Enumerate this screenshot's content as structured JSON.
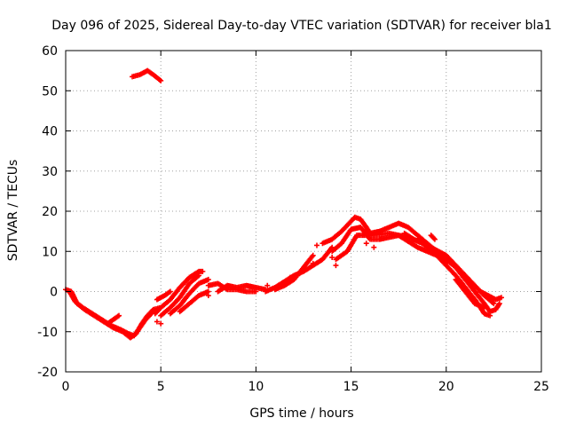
{
  "chart_data": {
    "type": "scatter",
    "title": "Day 096 of 2025, Sidereal Day-to-day VTEC variation (SDTVAR) for receiver bla1",
    "xlabel": "GPS time / hours",
    "ylabel": "SDTVAR / TECUs",
    "xlim": [
      0,
      25
    ],
    "ylim": [
      -20,
      60
    ],
    "xticks": [
      0,
      5,
      10,
      15,
      20,
      25
    ],
    "yticks": [
      -20,
      -10,
      0,
      10,
      20,
      30,
      40,
      50,
      60
    ],
    "grid": true,
    "marker": "plus",
    "series": [
      {
        "name": "SDTVAR",
        "color": "#ff0000",
        "tracks": [
          [
            [
              0,
              0.5
            ],
            [
              0.3,
              0
            ],
            [
              0.6,
              -3
            ],
            [
              1.0,
              -4.5
            ],
            [
              1.5,
              -6
            ],
            [
              2.0,
              -7.5
            ],
            [
              2.5,
              -9
            ],
            [
              3.0,
              -10
            ],
            [
              3.4,
              -11.5
            ],
            [
              3.7,
              -10.5
            ],
            [
              4.0,
              -8
            ],
            [
              4.3,
              -6
            ],
            [
              4.6,
              -4.5
            ],
            [
              5.0,
              -4
            ]
          ],
          [
            [
              0.2,
              0
            ],
            [
              0.5,
              -2.5
            ],
            [
              0.9,
              -4
            ],
            [
              1.4,
              -5.5
            ],
            [
              1.9,
              -7
            ],
            [
              2.4,
              -8.5
            ],
            [
              2.9,
              -9.5
            ],
            [
              3.3,
              -10.5
            ],
            [
              3.6,
              -11
            ],
            [
              3.9,
              -9
            ],
            [
              4.2,
              -7
            ],
            [
              4.6,
              -5
            ]
          ],
          [
            [
              2.2,
              -8
            ],
            [
              2.5,
              -7
            ],
            [
              2.8,
              -6
            ]
          ],
          [
            [
              3.5,
              53.5
            ],
            [
              3.9,
              54
            ],
            [
              4.3,
              55
            ],
            [
              4.6,
              54
            ],
            [
              5.0,
              52.5
            ]
          ],
          [
            [
              4.7,
              -5.5
            ],
            [
              5.0,
              -4
            ],
            [
              5.5,
              -2
            ],
            [
              6.0,
              1
            ],
            [
              6.5,
              3.5
            ],
            [
              7.0,
              5
            ],
            [
              7.2,
              5
            ]
          ],
          [
            [
              5.0,
              -6
            ],
            [
              5.5,
              -4
            ],
            [
              6.0,
              -1.5
            ],
            [
              6.5,
              2
            ],
            [
              7.0,
              4
            ]
          ],
          [
            [
              5.5,
              -5.5
            ],
            [
              6.0,
              -3.5
            ],
            [
              6.5,
              -0.5
            ],
            [
              7.0,
              2
            ],
            [
              7.5,
              3
            ]
          ],
          [
            [
              6.0,
              -5
            ],
            [
              6.5,
              -3
            ],
            [
              7.0,
              -1
            ],
            [
              7.5,
              0
            ]
          ],
          [
            [
              4.8,
              -2
            ],
            [
              5.2,
              -1
            ],
            [
              5.5,
              0
            ]
          ],
          [
            [
              8.0,
              0
            ],
            [
              8.5,
              1.5
            ],
            [
              9.0,
              1
            ],
            [
              9.5,
              1.5
            ],
            [
              10.0,
              1
            ],
            [
              10.5,
              0.5
            ]
          ],
          [
            [
              7.5,
              1.5
            ],
            [
              8.0,
              2
            ],
            [
              8.5,
              0.5
            ],
            [
              9.0,
              0.5
            ],
            [
              9.5,
              0
            ],
            [
              10.0,
              0
            ]
          ],
          [
            [
              10.5,
              0
            ],
            [
              11.0,
              1
            ],
            [
              11.5,
              2.5
            ],
            [
              12.0,
              4
            ],
            [
              12.5,
              5
            ],
            [
              13.0,
              6.5
            ],
            [
              13.5,
              8
            ],
            [
              14.0,
              11
            ]
          ],
          [
            [
              11.0,
              0.5
            ],
            [
              11.5,
              1.5
            ],
            [
              12.0,
              3
            ],
            [
              12.5,
              6
            ],
            [
              13.0,
              9
            ]
          ],
          [
            [
              13.5,
              12
            ],
            [
              14.0,
              13
            ],
            [
              14.5,
              15
            ],
            [
              14.9,
              17
            ],
            [
              15.2,
              18.5
            ],
            [
              15.5,
              18
            ],
            [
              15.8,
              16
            ],
            [
              16.0,
              14.5
            ],
            [
              16.5,
              15
            ],
            [
              17.0,
              16
            ],
            [
              17.5,
              17
            ],
            [
              18.0,
              16
            ],
            [
              18.5,
              14
            ],
            [
              19.0,
              12
            ],
            [
              19.5,
              10
            ],
            [
              20.0,
              8
            ],
            [
              20.5,
              6
            ],
            [
              21.0,
              3
            ],
            [
              21.5,
              0
            ],
            [
              22.0,
              -3
            ],
            [
              22.3,
              -5
            ],
            [
              22.6,
              -4.5
            ],
            [
              22.8,
              -3
            ]
          ],
          [
            [
              14.0,
              10
            ],
            [
              14.5,
              12
            ],
            [
              15.0,
              15.5
            ],
            [
              15.5,
              16
            ],
            [
              16.0,
              13
            ],
            [
              16.5,
              13
            ],
            [
              17.0,
              13.5
            ],
            [
              17.5,
              14
            ],
            [
              18.0,
              12.5
            ],
            [
              18.5,
              11
            ],
            [
              19.0,
              10
            ],
            [
              19.5,
              9
            ],
            [
              20.0,
              6.5
            ],
            [
              20.5,
              4
            ],
            [
              21.0,
              1
            ],
            [
              21.5,
              -2
            ],
            [
              21.8,
              -4
            ],
            [
              22.0,
              -5.5
            ],
            [
              22.3,
              -6
            ]
          ],
          [
            [
              14.2,
              8
            ],
            [
              14.8,
              10
            ],
            [
              15.3,
              14
            ],
            [
              16.0,
              14
            ],
            [
              17.0,
              14.5
            ],
            [
              18.0,
              13.5
            ],
            [
              19.0,
              11.5
            ],
            [
              20.0,
              9
            ],
            [
              21.0,
              4
            ],
            [
              21.5,
              1.5
            ],
            [
              22.0,
              -1
            ],
            [
              22.5,
              -3
            ]
          ],
          [
            [
              18.5,
              13
            ],
            [
              19.0,
              11
            ],
            [
              19.5,
              9.5
            ],
            [
              20.0,
              7
            ]
          ],
          [
            [
              20.5,
              3
            ],
            [
              21.0,
              0
            ],
            [
              21.5,
              -3
            ],
            [
              22.0,
              -4
            ]
          ],
          [
            [
              21.8,
              0
            ],
            [
              22.2,
              -1
            ],
            [
              22.6,
              -2
            ],
            [
              22.9,
              -1.5
            ]
          ],
          [
            [
              17.8,
              14.5
            ],
            [
              18.3,
              13
            ],
            [
              18.8,
              12
            ]
          ],
          [
            [
              19.2,
              14
            ],
            [
              19.4,
              13
            ]
          ]
        ],
        "points": [
          [
            12.3,
            4.5
          ],
          [
            13.0,
            7
          ],
          [
            13.2,
            11.5
          ],
          [
            14.2,
            6.5
          ],
          [
            14.0,
            8.5
          ],
          [
            15.8,
            12
          ],
          [
            16.2,
            11
          ],
          [
            5.0,
            -8
          ],
          [
            4.8,
            -7.5
          ],
          [
            7.5,
            -1
          ],
          [
            11.8,
            3.5
          ],
          [
            10.6,
            1.5
          ]
        ]
      }
    ]
  }
}
